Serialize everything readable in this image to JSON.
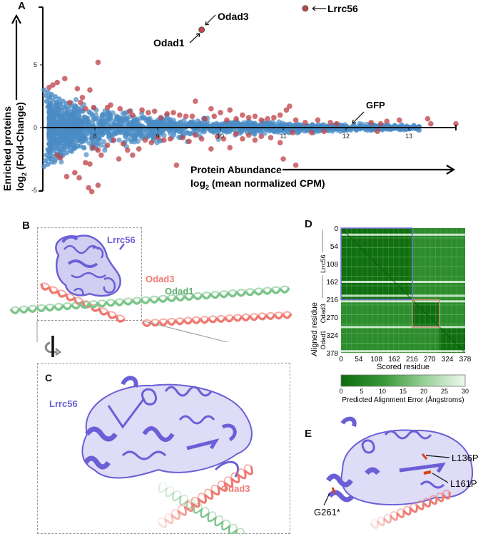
{
  "panels": {
    "A": {
      "letter": "A"
    },
    "B": {
      "letter": "B",
      "labels": {
        "lrrc56": "Lrrc56",
        "odad3": "Odad3",
        "odad1": "Odad1"
      }
    },
    "C": {
      "letter": "C",
      "labels": {
        "lrrc56": "Lrrc56",
        "odad3": "Odad3"
      }
    },
    "D": {
      "letter": "D"
    },
    "E": {
      "letter": "E",
      "labels": {
        "m1": "L136P",
        "m2": "L161P",
        "m3": "G261*"
      }
    }
  },
  "colors": {
    "not_enriched": "#4a8bc4",
    "enriched": "#c0474b",
    "lrrc56": "#6a5fd6",
    "odad3": "#ef7a72",
    "odad1": "#7cc58a",
    "pae_low": "#0c6b0c",
    "pae_high": "#eaf8ea",
    "box_lrrc56": "#7b74d6",
    "box_odad3": "#c98b7a"
  },
  "chart_data": [
    {
      "type": "scatter",
      "title": "",
      "xlabel_line1": "Protein Abundance",
      "xlabel_line2_prefix": "log",
      "xlabel_line2_sub": "2",
      "xlabel_line2_suffix": " (mean normalized CPM)",
      "ylabel_line1": "Enriched proteins",
      "ylabel_line2_prefix": "log",
      "ylabel_line2_sub": "2",
      "ylabel_line2_suffix": " (Fold-Change)",
      "xlim": [
        7.17,
        13.75
      ],
      "ylim": [
        -5.1,
        9.5
      ],
      "xticks": [
        8,
        9,
        10,
        11,
        12,
        13
      ],
      "yticks": [
        -5,
        0,
        5
      ],
      "annotations": [
        {
          "label": "Odad3",
          "x": 9.72,
          "y": 7.9
        },
        {
          "label": "Odad1",
          "x": 9.69,
          "y": 7.7
        },
        {
          "label": "Lrrc56",
          "x": 11.35,
          "y": 9.5
        },
        {
          "label": "GFP",
          "x": 12.05,
          "y": 0.1
        }
      ],
      "highlighted_points": [
        {
          "name": "Odad1/Odad3",
          "x": 9.7,
          "y": 7.8,
          "group": "enriched"
        },
        {
          "name": "Lrrc56",
          "x": 11.35,
          "y": 9.5,
          "group": "enriched"
        }
      ],
      "enriched_points": [
        [
          7.27,
          3.2
        ],
        [
          7.33,
          3.4
        ],
        [
          7.4,
          3.6
        ],
        [
          7.52,
          3.9
        ],
        [
          7.6,
          2.0
        ],
        [
          7.72,
          3.1
        ],
        [
          7.8,
          2.4
        ],
        [
          7.77,
          2.0
        ],
        [
          7.85,
          1.5
        ],
        [
          8.05,
          5.2
        ],
        [
          7.92,
          3.0
        ],
        [
          7.98,
          1.6
        ],
        [
          8.2,
          1.6
        ],
        [
          8.25,
          1.8
        ],
        [
          8.4,
          1.5
        ],
        [
          8.55,
          1.3
        ],
        [
          8.6,
          1.0
        ],
        [
          8.75,
          1.4
        ],
        [
          8.85,
          1.2
        ],
        [
          8.95,
          1.3
        ],
        [
          9.05,
          0.8
        ],
        [
          9.15,
          1.1
        ],
        [
          9.25,
          1.2
        ],
        [
          9.35,
          1.0
        ],
        [
          9.45,
          0.9
        ],
        [
          9.6,
          2.1
        ],
        [
          9.55,
          0.9
        ],
        [
          9.75,
          0.7
        ],
        [
          9.85,
          1.5
        ],
        [
          9.9,
          0.9
        ],
        [
          10.0,
          1.2
        ],
        [
          10.1,
          0.6
        ],
        [
          10.15,
          1.4
        ],
        [
          10.25,
          0.7
        ],
        [
          10.35,
          1.0
        ],
        [
          10.45,
          0.8
        ],
        [
          10.55,
          0.9
        ],
        [
          10.65,
          0.6
        ],
        [
          10.75,
          0.7
        ],
        [
          10.85,
          0.8
        ],
        [
          10.95,
          1.0
        ],
        [
          11.05,
          1.4
        ],
        [
          11.1,
          1.7
        ],
        [
          11.2,
          0.6
        ],
        [
          11.35,
          0.4
        ],
        [
          11.55,
          0.6
        ],
        [
          11.75,
          0.4
        ],
        [
          11.85,
          0.3
        ],
        [
          12.4,
          0.4
        ],
        [
          12.55,
          0.3
        ],
        [
          12.65,
          0.5
        ],
        [
          12.85,
          0.6
        ],
        [
          13.3,
          0.7
        ],
        [
          13.35,
          0.3
        ],
        [
          13.75,
          0.3
        ],
        [
          7.55,
          -3.9
        ],
        [
          7.68,
          -3.6
        ],
        [
          7.75,
          -4.0
        ],
        [
          7.95,
          -5.1
        ],
        [
          8.05,
          -4.6
        ],
        [
          7.9,
          -4.8
        ],
        [
          7.85,
          -2.8
        ],
        [
          7.92,
          -2.9
        ],
        [
          7.97,
          -1.6
        ],
        [
          8.05,
          -1.8
        ],
        [
          8.1,
          -2.2
        ],
        [
          8.2,
          -1.4
        ],
        [
          8.3,
          -1.0
        ],
        [
          8.38,
          -2.5
        ],
        [
          8.45,
          -1.3
        ],
        [
          8.52,
          -1.8
        ],
        [
          8.6,
          -2.2
        ],
        [
          8.7,
          -1.7
        ],
        [
          8.8,
          -1.0
        ],
        [
          8.9,
          -1.2
        ],
        [
          9.0,
          -0.8
        ],
        [
          9.1,
          -1.0
        ],
        [
          9.2,
          -0.9
        ],
        [
          9.3,
          -3.0
        ],
        [
          9.4,
          -0.8
        ],
        [
          9.5,
          -1.1
        ],
        [
          9.6,
          -0.6
        ],
        [
          9.7,
          -0.9
        ],
        [
          9.85,
          -1.7
        ],
        [
          9.95,
          -0.7
        ],
        [
          10.05,
          -0.9
        ],
        [
          10.15,
          -1.6
        ],
        [
          10.25,
          -0.5
        ],
        [
          10.35,
          -0.9
        ],
        [
          10.45,
          -0.6
        ],
        [
          10.55,
          -1.0
        ],
        [
          10.65,
          -0.7
        ],
        [
          10.8,
          -0.8
        ],
        [
          10.95,
          -1.2
        ],
        [
          11.0,
          -2.5
        ],
        [
          11.2,
          -3.0
        ],
        [
          11.15,
          -0.4
        ],
        [
          11.45,
          -0.4
        ],
        [
          11.65,
          -0.3
        ],
        [
          12.5,
          -0.3
        ],
        [
          7.45,
          -2.4
        ],
        [
          7.4,
          -2.2
        ]
      ]
    },
    {
      "type": "heatmap",
      "title": "",
      "xlabel": "Scored residue",
      "ylabel": "Aligned residue",
      "xticks": [
        0,
        54,
        108,
        162,
        216,
        270,
        324,
        378
      ],
      "yticks": [
        0,
        54,
        108,
        162,
        216,
        270,
        324,
        378
      ],
      "chain_labels": [
        "Lrrc56",
        "Odad3",
        "Odad1"
      ],
      "chain_ranges": [
        [
          0,
          217
        ],
        [
          217,
          300
        ],
        [
          300,
          378
        ]
      ],
      "colorbar": {
        "label": "Predicted Alignment Error (Ångstroms)",
        "ticks": [
          0,
          5,
          10,
          15,
          20,
          25,
          30
        ],
        "range": [
          0,
          30
        ]
      },
      "high_error_rows": [
        20,
        163,
        205,
        222,
        300,
        373
      ],
      "boxes": [
        {
          "name": "Lrrc56 block",
          "from": [
            0,
            0
          ],
          "to": [
            217,
            217
          ],
          "color": "#7b74d6"
        },
        {
          "name": "Odad3 block",
          "from": [
            217,
            217
          ],
          "to": [
            300,
            300
          ],
          "color": "#c98b7a"
        }
      ]
    }
  ]
}
